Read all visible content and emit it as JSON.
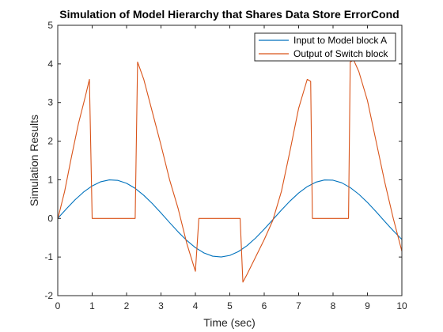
{
  "chart_data": {
    "type": "line",
    "title": "Simulation of Model Hierarchy that Shares Data Store ErrorCond",
    "xlabel": "Time (sec)",
    "ylabel": "Simulation Results",
    "xlim": [
      0,
      10
    ],
    "ylim": [
      -2,
      5
    ],
    "xticks": [
      0,
      1,
      2,
      3,
      4,
      5,
      6,
      7,
      8,
      9,
      10
    ],
    "yticks": [
      -2,
      -1,
      0,
      1,
      2,
      3,
      4,
      5
    ],
    "grid": false,
    "legend_position": "top-right",
    "series": [
      {
        "name": "Input to Model block A",
        "color": "#0072BD",
        "x": [
          0,
          0.25,
          0.5,
          0.75,
          1,
          1.25,
          1.5,
          1.75,
          2,
          2.25,
          2.5,
          2.75,
          3,
          3.25,
          3.5,
          3.75,
          4,
          4.25,
          4.5,
          4.75,
          5,
          5.25,
          5.5,
          5.75,
          6,
          6.25,
          6.5,
          6.75,
          7,
          7.25,
          7.5,
          7.75,
          8,
          8.25,
          8.5,
          8.75,
          9,
          9.25,
          9.5,
          9.75,
          10
        ],
        "y": [
          0,
          0.247,
          0.479,
          0.682,
          0.841,
          0.949,
          0.997,
          0.984,
          0.909,
          0.778,
          0.598,
          0.382,
          0.141,
          -0.108,
          -0.351,
          -0.572,
          -0.757,
          -0.895,
          -0.978,
          -0.999,
          -0.959,
          -0.859,
          -0.706,
          -0.508,
          -0.279,
          -0.033,
          0.215,
          0.45,
          0.657,
          0.823,
          0.938,
          0.995,
          0.989,
          0.923,
          0.798,
          0.625,
          0.412,
          0.174,
          -0.075,
          -0.319,
          -0.544
        ]
      },
      {
        "name": "Output of Switch block",
        "color": "#D95319",
        "x": [
          0,
          0.2,
          0.4,
          0.6,
          0.8,
          0.92,
          1.0,
          1.5,
          2.0,
          2.25,
          2.32,
          2.5,
          2.75,
          3.0,
          3.25,
          3.5,
          3.75,
          4.0,
          4.05,
          4.1,
          4.5,
          5.0,
          5.3,
          5.38,
          5.5,
          5.75,
          6.0,
          6.25,
          6.5,
          6.75,
          7.0,
          7.25,
          7.35,
          7.4,
          7.6,
          8.0,
          8.45,
          8.5,
          8.6,
          8.75,
          9.0,
          9.25,
          9.5,
          9.75,
          10
        ],
        "y": [
          -0.02,
          0.7,
          1.6,
          2.45,
          3.15,
          3.6,
          0,
          0,
          0,
          0,
          4.05,
          3.6,
          2.75,
          1.9,
          1.0,
          0.25,
          -0.65,
          -1.37,
          -0.7,
          0,
          0,
          0,
          0,
          -1.65,
          -1.45,
          -1.0,
          -0.55,
          -0.05,
          0.7,
          1.75,
          2.85,
          3.6,
          3.55,
          0,
          0,
          0,
          0,
          4.05,
          4.1,
          3.8,
          3.05,
          2.0,
          0.95,
          0.0,
          -0.85
        ]
      }
    ]
  }
}
